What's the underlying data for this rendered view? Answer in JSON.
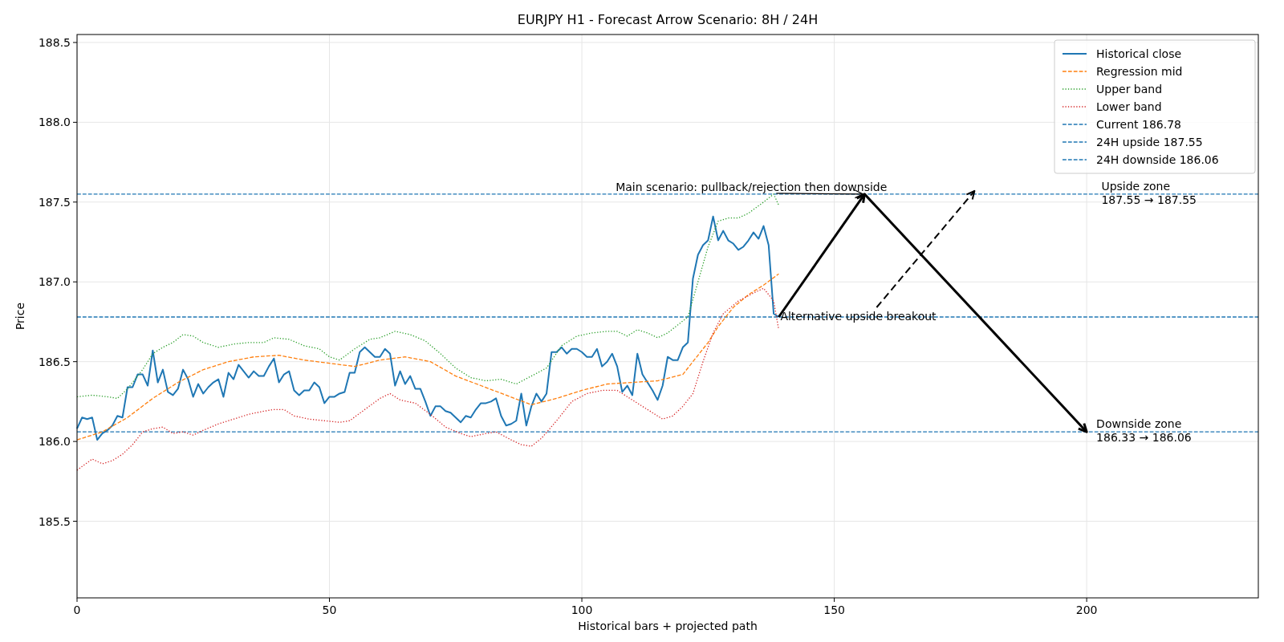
{
  "chart_data": {
    "type": "line",
    "title": "EURJPY H1 - Forecast Arrow Scenario: 8H / 24H",
    "xlabel": "Historical bars + projected path",
    "ylabel": "Price",
    "xlim": [
      0,
      234
    ],
    "xticks": [
      0,
      50,
      100,
      150,
      200
    ],
    "ylim": [
      185.02,
      188.55
    ],
    "yticks": [
      185.5,
      {
        "value": 186,
        "label": "186.0"
      },
      186.5,
      {
        "value": 187,
        "label": "187.0"
      },
      187.5,
      {
        "value": 188,
        "label": "188.0"
      },
      188.5
    ],
    "grid": true,
    "legend": "top right",
    "x": [
      0,
      1,
      2,
      3,
      4,
      5,
      6,
      7,
      8,
      9,
      10,
      11,
      12,
      13,
      14,
      15,
      16,
      17,
      18,
      19,
      20,
      21,
      22,
      23,
      24,
      25,
      26,
      27,
      28,
      29,
      30,
      31,
      32,
      33,
      34,
      35,
      36,
      37,
      38,
      39,
      40,
      41,
      42,
      43,
      44,
      45,
      46,
      47,
      48,
      49,
      50,
      51,
      52,
      53,
      54,
      55,
      56,
      57,
      58,
      59,
      60,
      61,
      62,
      63,
      64,
      65,
      66,
      67,
      68,
      69,
      70,
      71,
      72,
      73,
      74,
      75,
      76,
      77,
      78,
      79,
      80,
      81,
      82,
      83,
      84,
      85,
      86,
      87,
      88,
      89,
      90,
      91,
      92,
      93,
      94,
      95,
      96,
      97,
      98,
      99,
      100,
      101,
      102,
      103,
      104,
      105,
      106,
      107,
      108,
      109,
      110,
      111,
      112,
      113,
      114,
      115,
      116,
      117,
      118,
      119,
      120,
      121,
      122,
      123,
      124,
      125,
      126,
      127,
      128,
      129,
      130,
      131,
      132,
      133,
      134,
      135,
      136,
      137,
      138,
      139
    ],
    "series": [
      {
        "name": "Historical close",
        "color": "#1f77b4",
        "line_style": "solid",
        "values": [
          186.08,
          186.15,
          186.14,
          186.15,
          186.01,
          186.05,
          186.07,
          186.1,
          186.16,
          186.15,
          186.34,
          186.34,
          186.42,
          186.42,
          186.35,
          186.57,
          186.37,
          186.45,
          186.31,
          186.29,
          186.33,
          186.45,
          186.39,
          186.28,
          186.36,
          186.3,
          186.34,
          186.37,
          186.39,
          186.28,
          186.43,
          186.39,
          186.48,
          186.44,
          186.4,
          186.44,
          186.41,
          186.41,
          186.47,
          186.52,
          186.37,
          186.42,
          186.44,
          186.32,
          186.29,
          186.32,
          186.32,
          186.37,
          186.34,
          186.24,
          186.28,
          186.28,
          186.3,
          186.31,
          186.43,
          186.43,
          186.56,
          186.59,
          186.56,
          186.53,
          186.53,
          186.58,
          186.55,
          186.35,
          186.44,
          186.36,
          186.41,
          186.33,
          186.33,
          186.25,
          186.16,
          186.22,
          186.22,
          186.19,
          186.18,
          186.15,
          186.12,
          186.16,
          186.15,
          186.2,
          186.24,
          186.24,
          186.25,
          186.27,
          186.16,
          186.1,
          186.11,
          186.13,
          186.3,
          186.1,
          186.22,
          186.3,
          186.25,
          186.3,
          186.56,
          186.56,
          186.59,
          186.55,
          186.58,
          186.58,
          186.56,
          186.53,
          186.53,
          186.58,
          186.47,
          186.5,
          186.55,
          186.47,
          186.31,
          186.35,
          186.29,
          186.55,
          186.42,
          186.37,
          186.32,
          186.26,
          186.35,
          186.53,
          186.51,
          186.51,
          186.59,
          186.62,
          187.02,
          187.17,
          187.23,
          187.26,
          187.41,
          187.26,
          187.32,
          187.26,
          187.24,
          187.2,
          187.22,
          187.26,
          187.31,
          187.27,
          187.35,
          187.23,
          186.8,
          186.78
        ]
      },
      {
        "name": "Regression mid",
        "color": "#ff7f0e",
        "line_style": "dashed",
        "x": [
          0,
          5,
          10,
          15,
          20,
          25,
          30,
          35,
          40,
          45,
          50,
          55,
          60,
          65,
          70,
          75,
          80,
          85,
          90,
          95,
          100,
          105,
          110,
          115,
          120,
          125,
          127,
          130,
          133,
          136,
          139
        ],
        "values": [
          186.01,
          186.06,
          186.15,
          186.27,
          186.37,
          186.45,
          186.5,
          186.53,
          186.54,
          186.51,
          186.49,
          186.47,
          186.51,
          186.53,
          186.5,
          186.41,
          186.35,
          186.29,
          186.23,
          186.27,
          186.32,
          186.36,
          186.37,
          186.38,
          186.42,
          186.62,
          186.72,
          186.84,
          186.92,
          186.98,
          187.05
        ]
      },
      {
        "name": "Upper band",
        "color": "#2ca02c",
        "line_style": "dotted",
        "x": [
          0,
          3,
          6,
          8,
          10,
          13,
          15,
          17,
          19,
          21,
          23,
          25,
          28,
          31,
          34,
          37,
          39,
          42,
          45,
          48,
          50,
          52,
          55,
          58,
          60,
          63,
          66,
          69,
          72,
          75,
          78,
          81,
          84,
          87,
          90,
          93,
          96,
          99,
          102,
          105,
          107,
          109,
          111,
          113,
          115,
          117,
          119,
          121,
          123,
          125,
          127,
          129,
          131,
          133,
          136,
          138,
          139
        ],
        "values": [
          186.28,
          186.29,
          186.28,
          186.27,
          186.33,
          186.45,
          186.55,
          186.59,
          186.62,
          186.67,
          186.66,
          186.62,
          186.59,
          186.61,
          186.62,
          186.62,
          186.65,
          186.64,
          186.6,
          186.58,
          186.53,
          186.51,
          186.58,
          186.64,
          186.65,
          186.69,
          186.67,
          186.63,
          186.55,
          186.46,
          186.4,
          186.38,
          186.39,
          186.36,
          186.41,
          186.46,
          186.6,
          186.66,
          186.68,
          186.69,
          186.69,
          186.66,
          186.7,
          186.68,
          186.65,
          186.68,
          186.73,
          186.78,
          187.0,
          187.22,
          187.38,
          187.4,
          187.4,
          187.43,
          187.5,
          187.55,
          187.48
        ]
      },
      {
        "name": "Lower band",
        "color": "#d62728",
        "line_style": "dotted",
        "x": [
          0,
          3,
          5,
          7,
          9,
          11,
          13,
          15,
          17,
          19,
          21,
          23,
          25,
          28,
          31,
          34,
          37,
          39,
          41,
          43,
          46,
          49,
          52,
          54,
          57,
          60,
          62,
          64,
          67,
          70,
          73,
          76,
          78,
          81,
          83,
          86,
          88,
          90,
          92,
          95,
          98,
          101,
          104,
          107,
          110,
          113,
          116,
          118,
          120,
          122,
          124,
          126,
          128,
          131,
          134,
          136,
          138,
          139
        ],
        "values": [
          185.82,
          185.89,
          185.86,
          185.88,
          185.92,
          185.98,
          186.06,
          186.08,
          186.09,
          186.05,
          186.06,
          186.04,
          186.07,
          186.11,
          186.14,
          186.17,
          186.19,
          186.2,
          186.2,
          186.16,
          186.14,
          186.13,
          186.12,
          186.13,
          186.2,
          186.27,
          186.3,
          186.26,
          186.24,
          186.17,
          186.09,
          186.05,
          186.03,
          186.05,
          186.06,
          186.01,
          185.98,
          185.97,
          186.02,
          186.13,
          186.25,
          186.3,
          186.32,
          186.32,
          186.26,
          186.2,
          186.14,
          186.16,
          186.22,
          186.3,
          186.5,
          186.68,
          186.8,
          186.88,
          186.93,
          186.96,
          186.88,
          186.7
        ]
      }
    ],
    "ref_lines": [
      {
        "axis": "y",
        "value": 186.78,
        "label": "Current 186.78",
        "color": "#1f77b4",
        "line_style": "dashed"
      },
      {
        "axis": "y",
        "value": 187.55,
        "label": "24H upside 187.55",
        "color": "#1f77b4",
        "line_style": "dashed"
      },
      {
        "axis": "y",
        "value": 186.06,
        "label": "24H downside 186.06",
        "color": "#1f77b4",
        "line_style": "dashed"
      }
    ],
    "annotations": [
      {
        "text": "Main scenario: pullback/rejection then downside",
        "x": 156,
        "y": 187.55
      },
      {
        "text": "Alternative upside breakout",
        "x": 139,
        "y": 186.78
      },
      {
        "text": "Upside zone\n187.55 → 187.55",
        "x": 201,
        "y": 187.55
      },
      {
        "text": "Downside zone\n186.33 → 186.06",
        "x": 200,
        "y": 186.06
      }
    ]
  }
}
